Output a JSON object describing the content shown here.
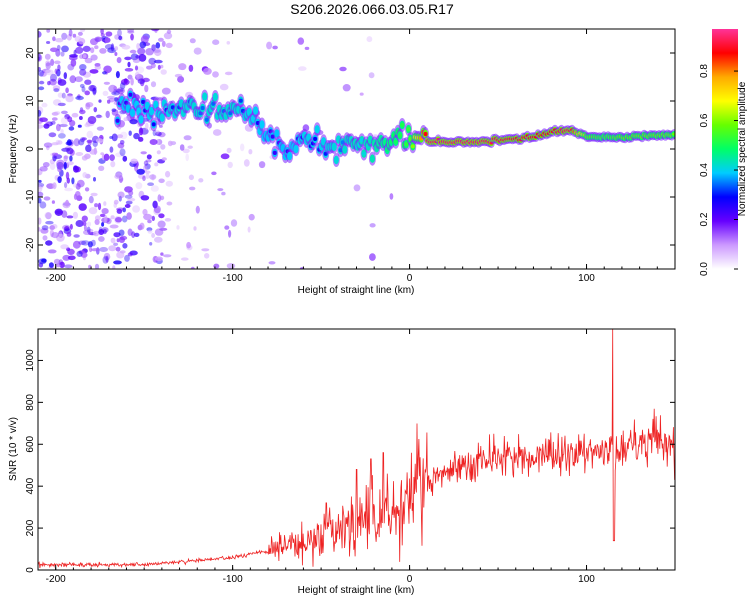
{
  "title": "S206.2026.066.03.05.R17",
  "chart_data": [
    {
      "type": "heatmap",
      "name": "spectrogram",
      "xlabel": "Height of straight line (km)",
      "ylabel": "Frequency (Hz)",
      "xlim": [
        -210,
        150
      ],
      "ylim": [
        -25,
        25
      ],
      "xticks": [
        -200,
        -100,
        0,
        100
      ],
      "yticks": [
        -20,
        -10,
        0,
        10,
        20
      ],
      "colorbar": {
        "label": "Normalized spectral amplitude",
        "range": [
          0,
          0.97
        ],
        "ticks": [
          0.0,
          0.2,
          0.4,
          0.6,
          0.8
        ],
        "tick_labels": [
          "0.0",
          "0.2",
          "0.4",
          "0.6",
          "0.8"
        ],
        "colormap": [
          "#ffffff",
          "#cc99ff",
          "#6600ff",
          "#0000ff",
          "#00ccff",
          "#00ff66",
          "#66ff00",
          "#ffff00",
          "#ffaa00",
          "#ff0000",
          "#ff3399"
        ]
      },
      "ridge": {
        "description_points_x": [
          -160,
          -140,
          -120,
          -100,
          -90,
          -80,
          -70,
          -60,
          -50,
          -40,
          -30,
          -20,
          -10,
          0,
          10,
          40,
          70,
          80,
          90,
          100,
          110,
          120,
          150
        ],
        "description_points_freq": [
          9,
          8.5,
          9,
          8.5,
          7,
          3,
          0,
          2,
          1.5,
          0.5,
          0.5,
          1,
          1.5,
          3,
          1.5,
          1.5,
          2.5,
          3.5,
          4,
          2.5,
          2.5,
          2.5,
          3
        ],
        "peak_amplitude": [
          0.25,
          0.3,
          0.35,
          0.35,
          0.3,
          0.25,
          0.25,
          0.3,
          0.3,
          0.35,
          0.4,
          0.45,
          0.5,
          0.55,
          0.95,
          0.95,
          0.9,
          0.9,
          0.95,
          0.6,
          0.55,
          0.6,
          0.6
        ]
      },
      "noise_region_x": [
        -210,
        -140
      ]
    },
    {
      "type": "line",
      "name": "snr",
      "xlabel": "Height of straight line (km)",
      "ylabel": "SNR (10 * v/v)",
      "xlim": [
        -210,
        150
      ],
      "ylim": [
        0,
        1150
      ],
      "xticks": [
        -200,
        -100,
        0,
        100
      ],
      "yticks": [
        0,
        200,
        400,
        600,
        800,
        1000
      ],
      "line_color": "#ee2222",
      "trend_x": [
        -210,
        -150,
        -130,
        -100,
        -80,
        -60,
        -45,
        -35,
        -25,
        -15,
        -5,
        5,
        20,
        40,
        60,
        80,
        100,
        110,
        115,
        120,
        140,
        150
      ],
      "trend_y": [
        25,
        25,
        40,
        60,
        90,
        130,
        180,
        230,
        270,
        300,
        320,
        380,
        470,
        520,
        530,
        540,
        550,
        570,
        560,
        590,
        620,
        600
      ],
      "spikes": [
        {
          "x": -47,
          "y": 320
        },
        {
          "x": -30,
          "y": 480
        },
        {
          "x": -22,
          "y": 530
        },
        {
          "x": -15,
          "y": 560
        },
        {
          "x": 115,
          "y": 1150
        },
        {
          "x": 115.5,
          "y": 140
        },
        {
          "x": 150,
          "y": 430
        }
      ]
    }
  ]
}
